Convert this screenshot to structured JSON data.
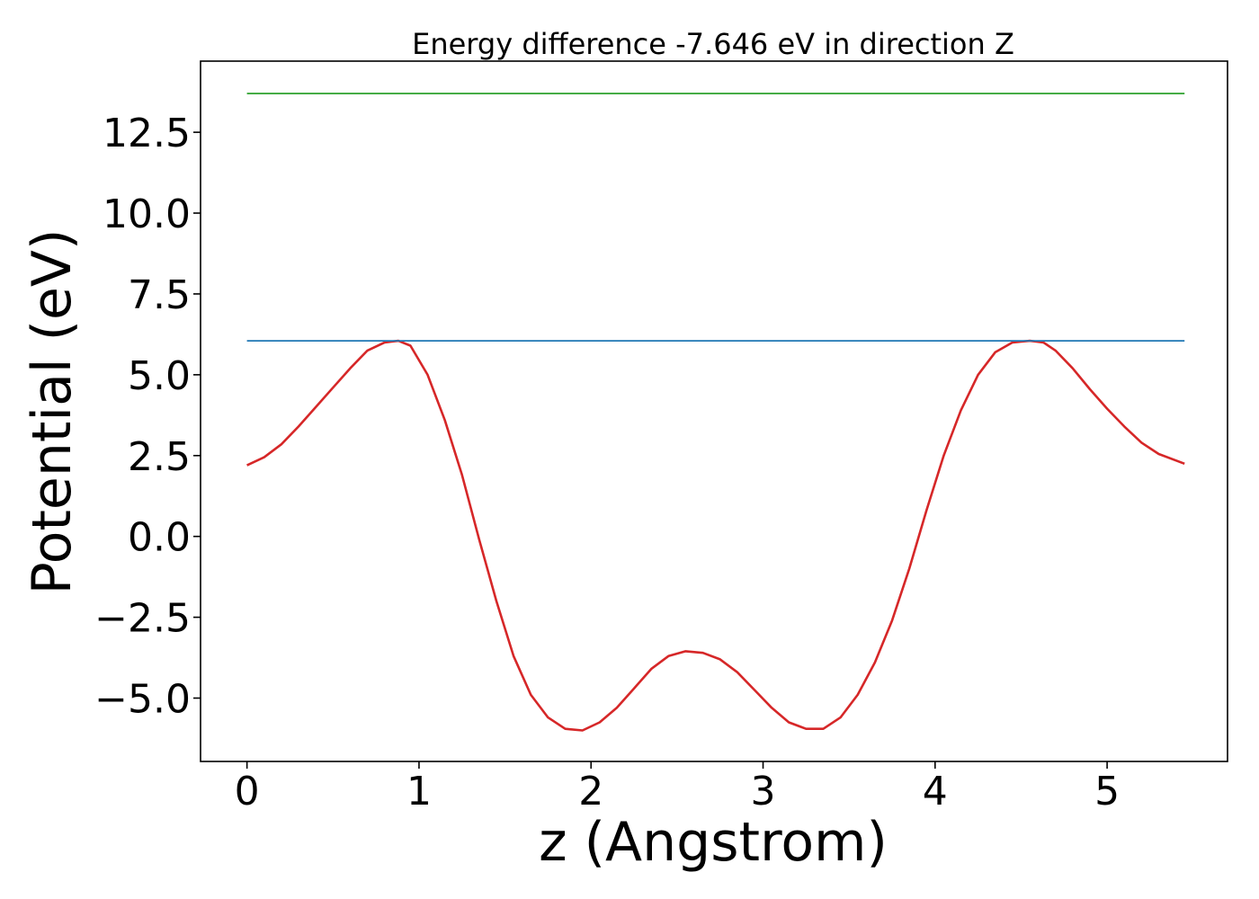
{
  "chart_data": {
    "type": "line",
    "title": "Energy difference -7.646 eV in direction Z",
    "xlabel": "z (Angstrom)",
    "ylabel": "Potential (eV)",
    "xlim": [
      -0.27,
      5.7
    ],
    "ylim": [
      -6.96,
      14.7
    ],
    "xticks": [
      0,
      1,
      2,
      3,
      4,
      5
    ],
    "xtick_labels": [
      "0",
      "1",
      "2",
      "3",
      "4",
      "5"
    ],
    "yticks": [
      -5.0,
      -2.5,
      0.0,
      2.5,
      5.0,
      7.5,
      10.0,
      12.5
    ],
    "ytick_labels": [
      "−5.0",
      "−2.5",
      "0.0",
      "2.5",
      "5.0",
      "7.5",
      "10.0",
      "12.5"
    ],
    "grid": false,
    "series": [
      {
        "color": "#d62728",
        "x": [
          0.0,
          0.1,
          0.2,
          0.3,
          0.4,
          0.5,
          0.6,
          0.7,
          0.8,
          0.88,
          0.95,
          1.05,
          1.15,
          1.25,
          1.35,
          1.45,
          1.55,
          1.65,
          1.75,
          1.85,
          1.95,
          2.05,
          2.15,
          2.25,
          2.35,
          2.45,
          2.55,
          2.65,
          2.75,
          2.85,
          2.95,
          3.05,
          3.15,
          3.25,
          3.35,
          3.45,
          3.55,
          3.65,
          3.75,
          3.85,
          3.95,
          4.05,
          4.15,
          4.25,
          4.35,
          4.45,
          4.55,
          4.63,
          4.7,
          4.8,
          4.9,
          5.0,
          5.1,
          5.2,
          5.3,
          5.45
        ],
        "y": [
          2.2,
          2.45,
          2.85,
          3.4,
          4.0,
          4.6,
          5.2,
          5.75,
          6.0,
          6.05,
          5.9,
          5.0,
          3.6,
          1.9,
          -0.1,
          -2.0,
          -3.7,
          -4.9,
          -5.6,
          -5.95,
          -6.0,
          -5.75,
          -5.3,
          -4.7,
          -4.1,
          -3.7,
          -3.55,
          -3.6,
          -3.8,
          -4.2,
          -4.75,
          -5.3,
          -5.75,
          -5.95,
          -5.95,
          -5.6,
          -4.9,
          -3.9,
          -2.6,
          -1.0,
          0.8,
          2.5,
          3.9,
          5.0,
          5.7,
          6.0,
          6.05,
          6.0,
          5.75,
          5.2,
          4.55,
          3.95,
          3.4,
          2.9,
          2.55,
          2.25
        ]
      },
      {
        "color": "#1f77b4",
        "x": [
          0.0,
          5.45
        ],
        "y": [
          6.05,
          6.05
        ]
      },
      {
        "color": "#2ca02c",
        "x": [
          0.0,
          5.45
        ],
        "y": [
          13.7,
          13.7
        ]
      }
    ]
  }
}
